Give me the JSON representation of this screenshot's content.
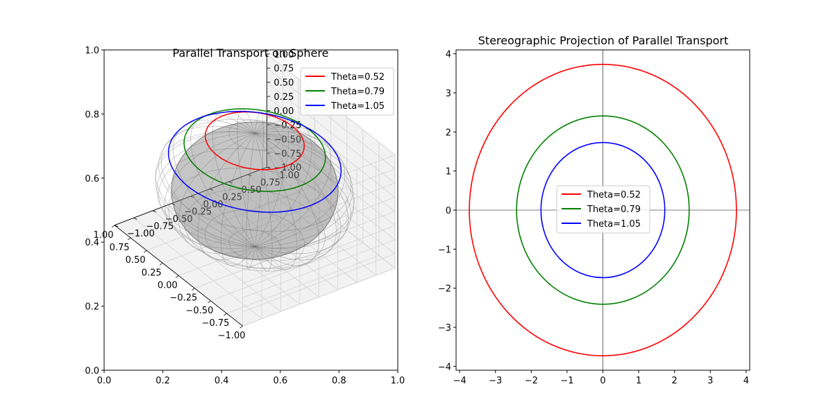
{
  "chart_data": [
    {
      "type": "line",
      "projection": "3d",
      "title": "Parallel Transport on Sphere",
      "series": [
        {
          "name": "Theta=0.52",
          "theta": 0.52,
          "color": "#ff0000"
        },
        {
          "name": "Theta=0.79",
          "theta": 0.79,
          "color": "#008000"
        },
        {
          "name": "Theta=1.05",
          "theta": 1.05,
          "color": "#0000ff"
        }
      ],
      "surface": {
        "shape": "unit sphere",
        "color": "#808080",
        "alpha": 0.5
      },
      "xlim": [
        -1,
        1
      ],
      "ylim": [
        -1,
        1
      ],
      "zlim": [
        -1,
        1
      ],
      "x_ticks": [
        "−1.00",
        "−0.75",
        "−0.50",
        "−0.25",
        "0.00",
        "0.25",
        "0.50",
        "0.75",
        "1.00"
      ],
      "y_ticks": [
        "−1.00",
        "−0.75",
        "−0.50",
        "−0.25",
        "0.00",
        "0.25",
        "0.50",
        "0.75",
        "1.00"
      ],
      "z_ticks": [
        "−1.00",
        "−0.75",
        "−0.50",
        "−0.25",
        "0.00",
        "0.25",
        "0.50",
        "0.75",
        "1.00"
      ],
      "frame_x_ticks": [
        "0.0",
        "0.2",
        "0.4",
        "0.6",
        "0.8",
        "1.0"
      ],
      "frame_y_ticks": [
        "0.0",
        "0.2",
        "0.4",
        "0.6",
        "0.8",
        "1.0"
      ],
      "legend": "upper right",
      "grid": true
    },
    {
      "type": "line",
      "title": "Stereographic Projection of Parallel Transport",
      "series": [
        {
          "name": "Theta=0.52",
          "radius": 3.73,
          "color": "#ff0000"
        },
        {
          "name": "Theta=0.79",
          "radius": 2.41,
          "color": "#008000"
        },
        {
          "name": "Theta=1.05",
          "radius": 1.73,
          "color": "#0000ff"
        }
      ],
      "xlim": [
        -4.1,
        4.1
      ],
      "ylim": [
        -4.1,
        4.1
      ],
      "x_ticks": [
        -4,
        -3,
        -2,
        -1,
        0,
        1,
        2,
        3,
        4
      ],
      "y_ticks": [
        -4,
        -3,
        -2,
        -1,
        0,
        1,
        2,
        3,
        4
      ],
      "x_tick_labels": [
        "−4",
        "−3",
        "−2",
        "−1",
        "0",
        "1",
        "2",
        "3",
        "4"
      ],
      "y_tick_labels": [
        "−4",
        "−3",
        "−2",
        "−1",
        "0",
        "1",
        "2",
        "3",
        "4"
      ],
      "axhline": 0,
      "axvline": 0,
      "legend": "center",
      "grid": false
    }
  ]
}
